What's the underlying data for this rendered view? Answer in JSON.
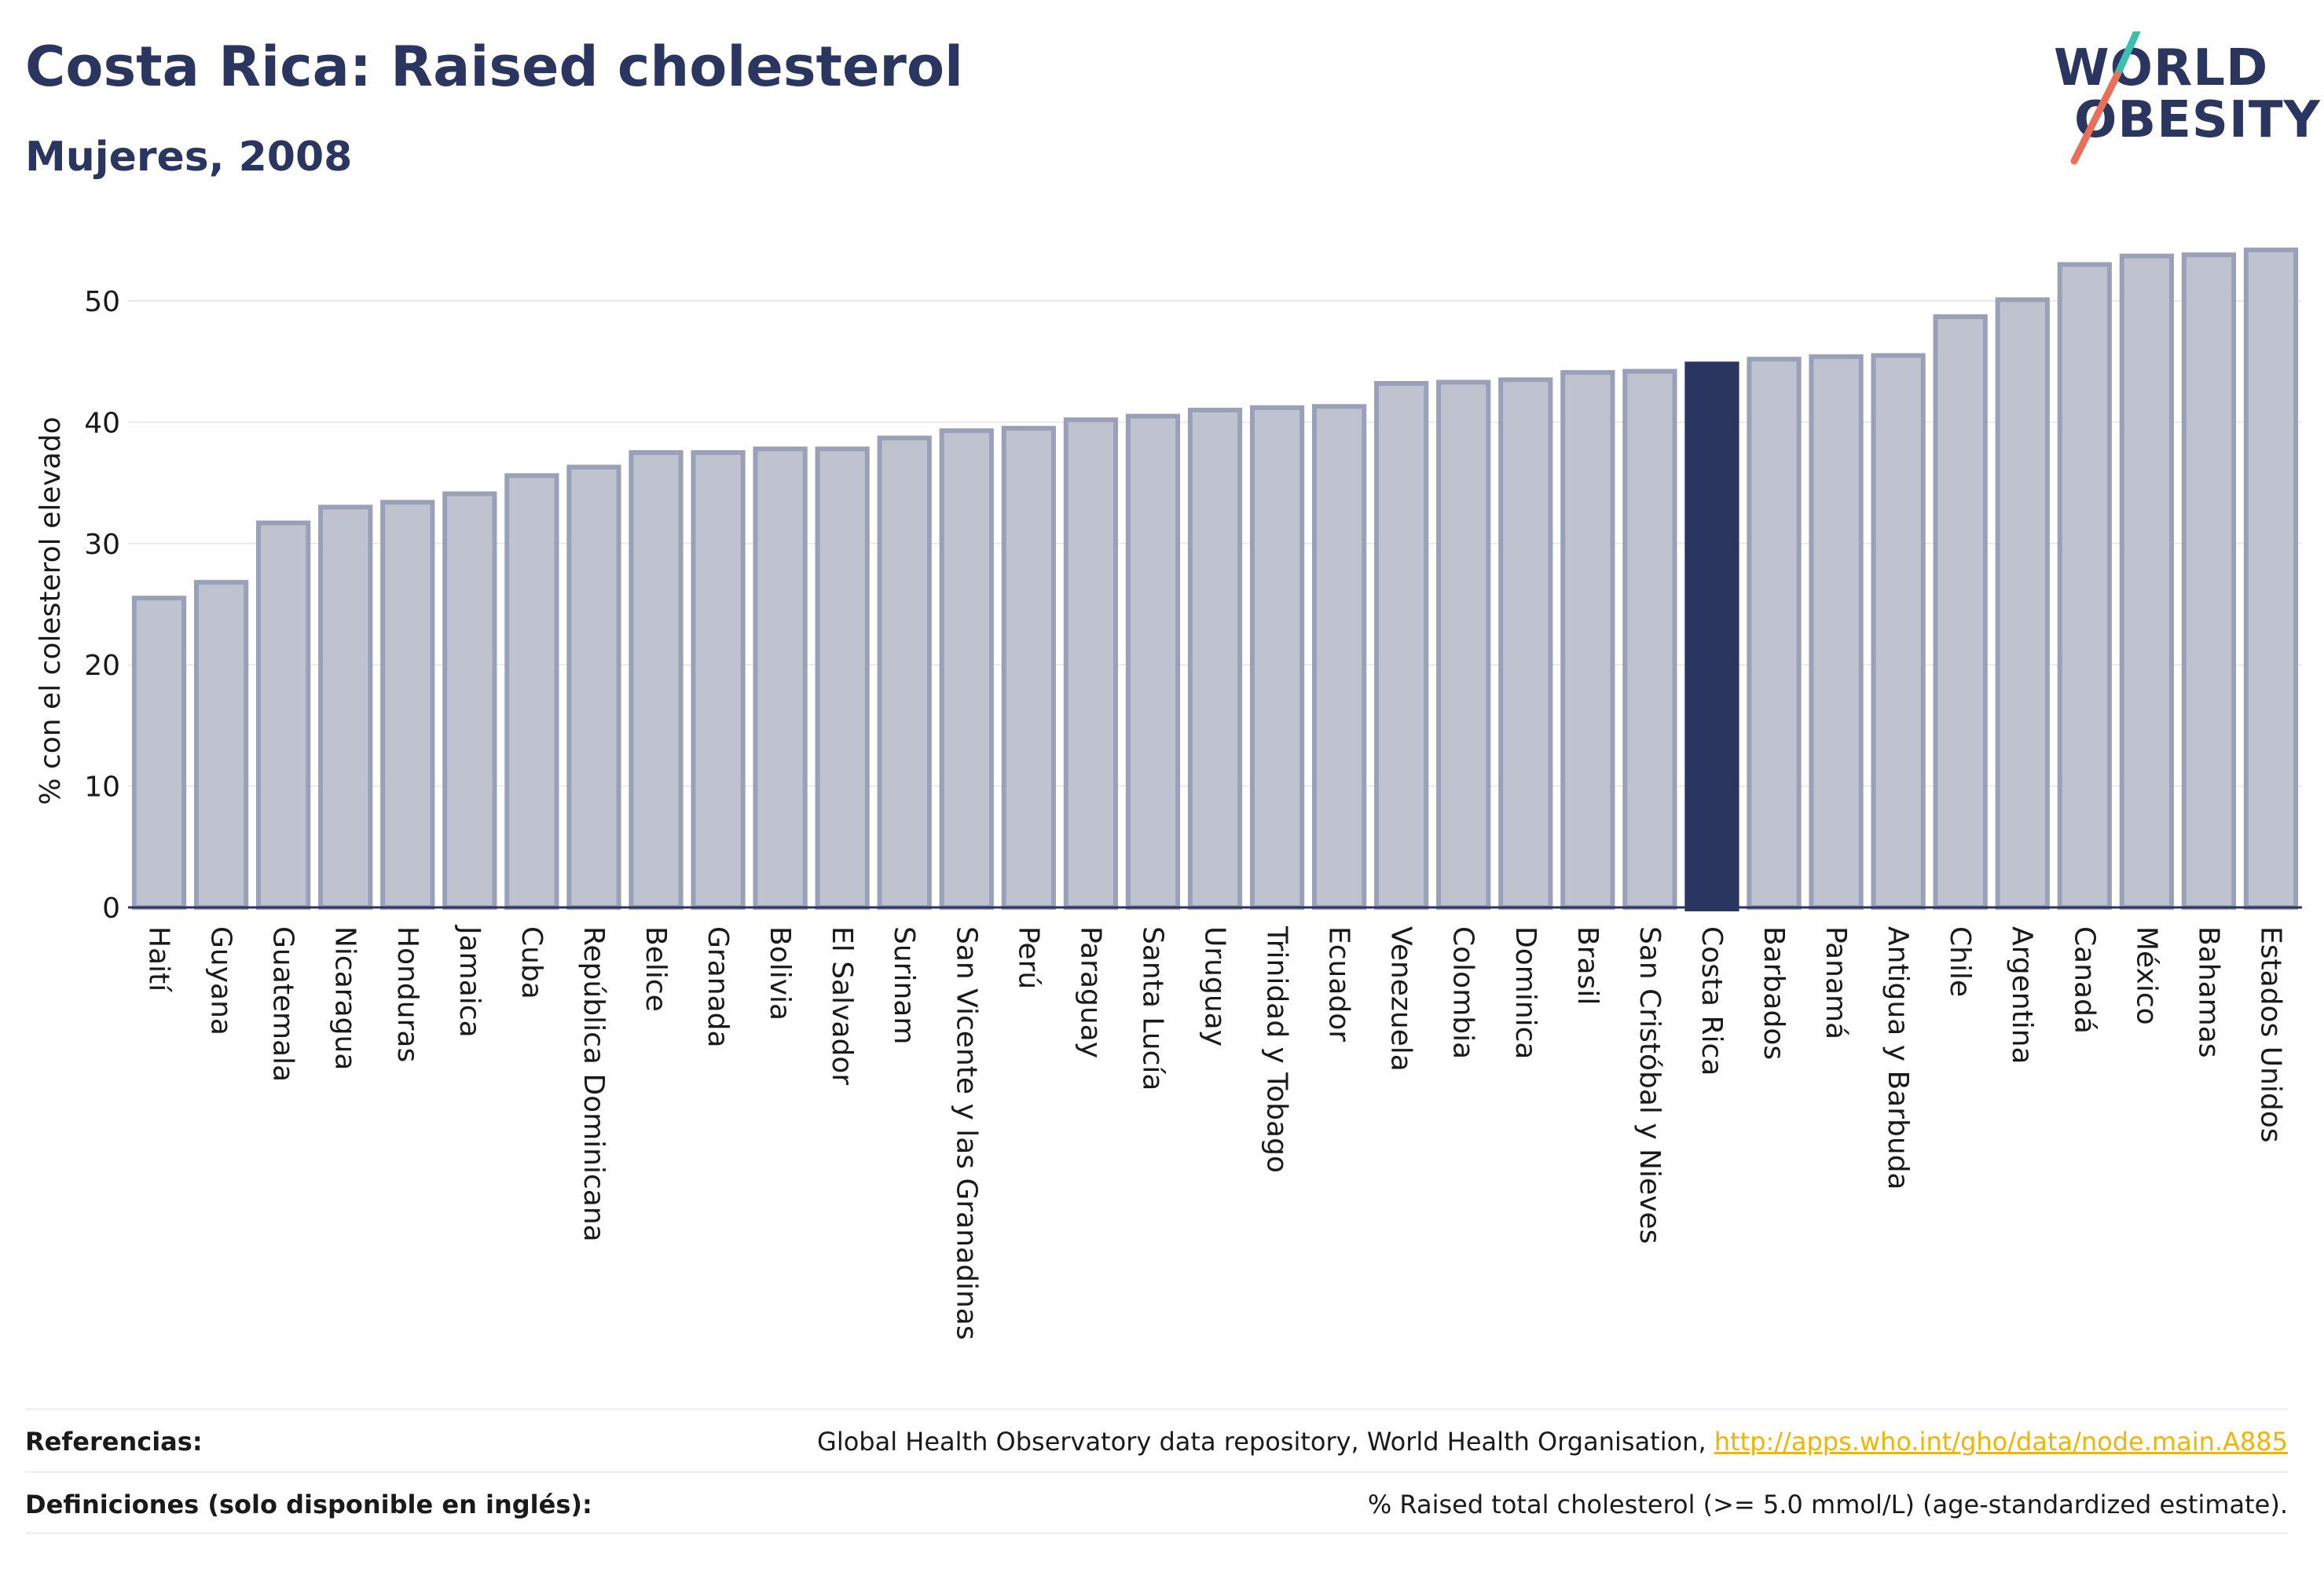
{
  "header": {
    "title": "Costa Rica: Raised cholesterol",
    "subtitle": "Mujeres, 2008"
  },
  "logo": {
    "line1": "WORLD",
    "line2": "OBESITY"
  },
  "colors": {
    "bar": "#bfc3d0",
    "bar_edge": "#9aa0b8",
    "highlight": "#2a3560",
    "title": "#2a3560",
    "link": "#f2b400"
  },
  "chart_data": {
    "type": "bar",
    "title": "Costa Rica: Raised cholesterol",
    "subtitle": "Mujeres, 2008",
    "xlabel": "",
    "ylabel": "% con el colesterol elevado",
    "ylim": [
      0,
      55
    ],
    "yticks": [
      0,
      10,
      20,
      30,
      40,
      50
    ],
    "grid": true,
    "highlight": "Costa Rica",
    "categories": [
      "Haití",
      "Guyana",
      "Guatemala",
      "Nicaragua",
      "Honduras",
      "Jamaica",
      "Cuba",
      "República Dominicana",
      "Belice",
      "Granada",
      "Bolivia",
      "El Salvador",
      "Surinam",
      "San Vicente y las Granadinas",
      "Perú",
      "Paraguay",
      "Santa Lucía",
      "Uruguay",
      "Trinidad y Tobago",
      "Ecuador",
      "Venezuela",
      "Colombia",
      "Dominica",
      "Brasil",
      "San Cristóbal y Nieves",
      "Costa Rica",
      "Barbados",
      "Panamá",
      "Antigua y Barbuda",
      "Chile",
      "Argentina",
      "Canadá",
      "México",
      "Bahamas",
      "Estados Unidos"
    ],
    "values": [
      25.5,
      26.8,
      31.7,
      33.0,
      33.4,
      34.1,
      35.6,
      36.3,
      37.5,
      37.5,
      37.8,
      37.8,
      38.7,
      39.3,
      39.5,
      40.2,
      40.5,
      41.0,
      41.2,
      41.3,
      43.2,
      43.3,
      43.5,
      44.1,
      44.2,
      44.8,
      45.2,
      45.4,
      45.5,
      48.7,
      50.1,
      53.0,
      53.7,
      53.8,
      54.2
    ]
  },
  "footer": {
    "references_label": "Referencias:",
    "references_text": "Global Health Observatory data repository, World Health Organisation, ",
    "references_link": "http://apps.who.int/gho/data/node.main.A885",
    "definitions_label": "Definiciones (solo disponible en inglés):",
    "definitions_text": "% Raised total cholesterol (>= 5.0 mmol/L) (age-standardized estimate)."
  }
}
